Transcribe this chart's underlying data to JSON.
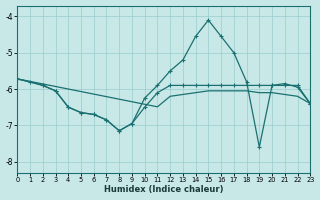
{
  "xlabel": "Humidex (Indice chaleur)",
  "bg_color": "#c8e8e8",
  "line_color": "#1a7070",
  "grid_color": "#99cccc",
  "xlim": [
    0,
    23
  ],
  "ylim": [
    -8.3,
    -3.7
  ],
  "yticks": [
    -8,
    -7,
    -6,
    -5,
    -4
  ],
  "xticks": [
    0,
    1,
    2,
    3,
    4,
    5,
    6,
    7,
    8,
    9,
    10,
    11,
    12,
    13,
    14,
    15,
    16,
    17,
    18,
    19,
    20,
    21,
    22,
    23
  ],
  "line1_x": [
    0,
    1,
    2,
    3,
    4,
    5,
    6,
    7,
    8,
    9,
    10,
    11,
    12,
    13,
    14,
    15,
    16,
    17,
    18,
    19,
    20,
    21,
    22,
    23
  ],
  "line1_y": [
    -5.72,
    -5.79,
    -5.86,
    -5.93,
    -6.0,
    -6.07,
    -6.14,
    -6.21,
    -6.28,
    -6.35,
    -6.42,
    -6.49,
    -6.2,
    -6.15,
    -6.1,
    -6.05,
    -6.05,
    -6.05,
    -6.05,
    -6.1,
    -6.1,
    -6.15,
    -6.2,
    -6.4
  ],
  "line2_x": [
    0,
    1,
    2,
    3,
    4,
    5,
    6,
    7,
    8,
    9,
    10,
    11,
    12,
    13,
    14,
    15,
    16,
    17,
    18,
    19,
    20,
    21,
    22,
    23
  ],
  "line2_y": [
    -5.72,
    -5.8,
    -5.9,
    -6.05,
    -6.5,
    -6.65,
    -6.7,
    -6.85,
    -7.15,
    -6.95,
    -6.5,
    -6.1,
    -5.9,
    -5.9,
    -5.9,
    -5.9,
    -5.9,
    -5.9,
    -5.9,
    -5.9,
    -5.9,
    -5.9,
    -5.9,
    -6.4
  ],
  "line3_x": [
    0,
    2,
    3,
    4,
    5,
    6,
    7,
    8,
    9,
    10,
    11,
    12,
    13,
    14,
    15,
    16,
    17,
    18,
    19,
    20,
    21,
    22,
    23
  ],
  "line3_y": [
    -5.72,
    -5.9,
    -6.05,
    -6.5,
    -6.65,
    -6.7,
    -6.85,
    -7.15,
    -6.95,
    -6.25,
    -5.9,
    -5.5,
    -5.2,
    -4.55,
    -4.1,
    -4.55,
    -5.0,
    -5.8,
    -7.6,
    -5.9,
    -5.85,
    -5.95,
    -6.4
  ]
}
